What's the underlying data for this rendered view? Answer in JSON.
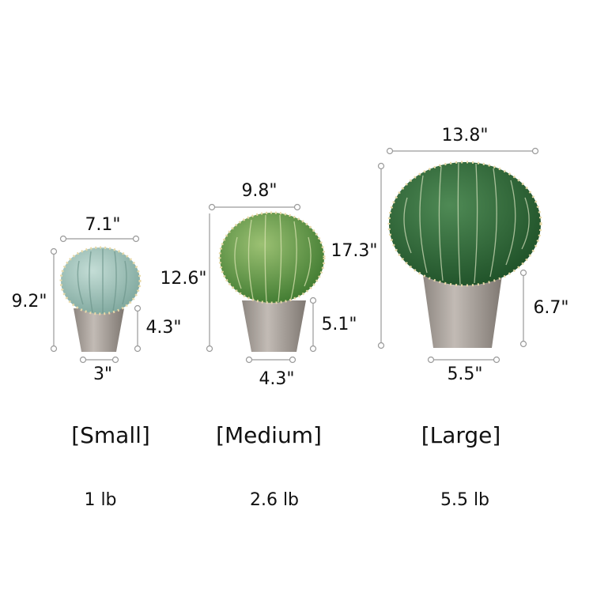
{
  "products": [
    {
      "size_label": "[Small]",
      "weight": "1 lb",
      "total_width": "7.1\"",
      "total_height": "9.2\"",
      "pot_height": "4.3\"",
      "pot_width": "3\"",
      "cactus_color": "#8fb8b0"
    },
    {
      "size_label": "[Medium]",
      "weight": "2.6 lb",
      "total_width": "9.8\"",
      "total_height": "12.6\"",
      "pot_height": "5.1\"",
      "pot_width": "4.3\"",
      "cactus_color": "#5d8f3f"
    },
    {
      "size_label": "[Large]",
      "weight": "5.5 lb",
      "total_width": "13.8\"",
      "total_height": "17.3\"",
      "pot_height": "6.7\"",
      "pot_width": "5.5\"",
      "cactus_color": "#2f6a3a"
    }
  ],
  "pot_color": "#a9a29c",
  "spine_color": "#e8d9a8"
}
